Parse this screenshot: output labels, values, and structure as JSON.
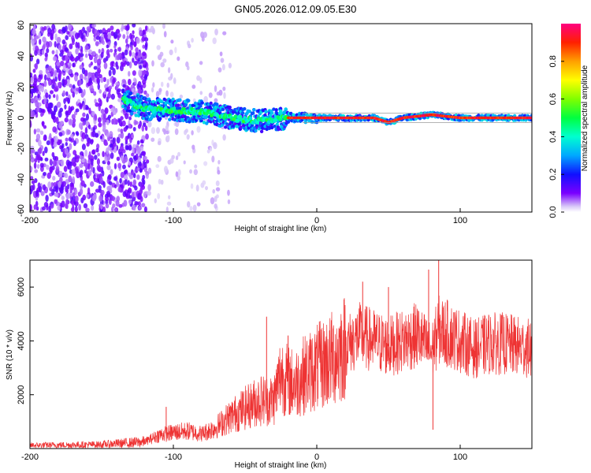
{
  "chart_data": [
    {
      "type": "heatmap",
      "title": "GN05.2026.012.09.05.E30",
      "xlabel": "Height of straight line (km)",
      "ylabel": "Frequency (Hz)",
      "xlim": [
        -200,
        150
      ],
      "ylim": [
        -61,
        61
      ],
      "x_ticks": [
        -200,
        -100,
        0,
        100
      ],
      "y_ticks": [
        -60,
        -40,
        -20,
        0,
        20,
        40,
        60
      ],
      "colorbar": {
        "label": "Normalized spectral amplitude",
        "range": [
          0,
          1
        ],
        "ticks": [
          0.0,
          0.2,
          0.4,
          0.6,
          0.8
        ],
        "tick_labels": [
          "0.0",
          "0.2",
          "0.4",
          "0.6",
          "0.8"
        ]
      },
      "ridge": {
        "description": "Dominant frequency track vs height",
        "x": [
          -135,
          -120,
          -100,
          -80,
          -60,
          -40,
          -20,
          0,
          20,
          40,
          50,
          60,
          80,
          100,
          150
        ],
        "y": [
          12,
          6,
          5,
          4,
          0,
          -2,
          0,
          0,
          0,
          0,
          -3,
          0,
          2,
          0,
          0
        ]
      },
      "noise_regions": [
        {
          "x_range": [
            -200,
            -118
          ],
          "amplitude": 0.08,
          "freq_range": [
            -60,
            60
          ]
        },
        {
          "x_range": [
            -118,
            -60
          ],
          "amplitude": 0.02,
          "freq_range": [
            -60,
            60
          ]
        }
      ]
    },
    {
      "type": "line",
      "xlabel": "Height of straight line (km)",
      "ylabel": "SNR (10 * v/v)",
      "xlim": [
        -200,
        150
      ],
      "ylim": [
        0,
        7000
      ],
      "x_ticks": [
        -200,
        -100,
        0,
        100
      ],
      "y_ticks": [
        2000,
        4000,
        6000
      ],
      "color": "#ee3333",
      "series": [
        {
          "name": "SNR",
          "x": [
            -200,
            -150,
            -120,
            -110,
            -100,
            -90,
            -80,
            -70,
            -60,
            -50,
            -40,
            -30,
            -25,
            -20,
            -15,
            -10,
            0,
            10,
            20,
            30,
            40,
            50,
            60,
            70,
            80,
            85,
            90,
            100,
            110,
            120,
            130,
            140,
            150
          ],
          "y": [
            120,
            150,
            250,
            500,
            600,
            650,
            550,
            800,
            1200,
            1500,
            1800,
            1800,
            2800,
            2500,
            2400,
            2700,
            3000,
            3300,
            3800,
            4200,
            4000,
            3800,
            4000,
            4200,
            3600,
            4400,
            4300,
            4000,
            3700,
            3900,
            3900,
            3800,
            3700
          ]
        }
      ],
      "spikes": [
        {
          "x": -105,
          "y": 1550
        },
        {
          "x": -35,
          "y": 4900
        },
        {
          "x": -20,
          "y": 4200
        },
        {
          "x": 32,
          "y": 6200
        },
        {
          "x": 50,
          "y": 6000
        },
        {
          "x": 78,
          "y": 6650
        },
        {
          "x": 85,
          "y": 7000
        },
        {
          "x": 81,
          "y": 700
        }
      ]
    }
  ]
}
